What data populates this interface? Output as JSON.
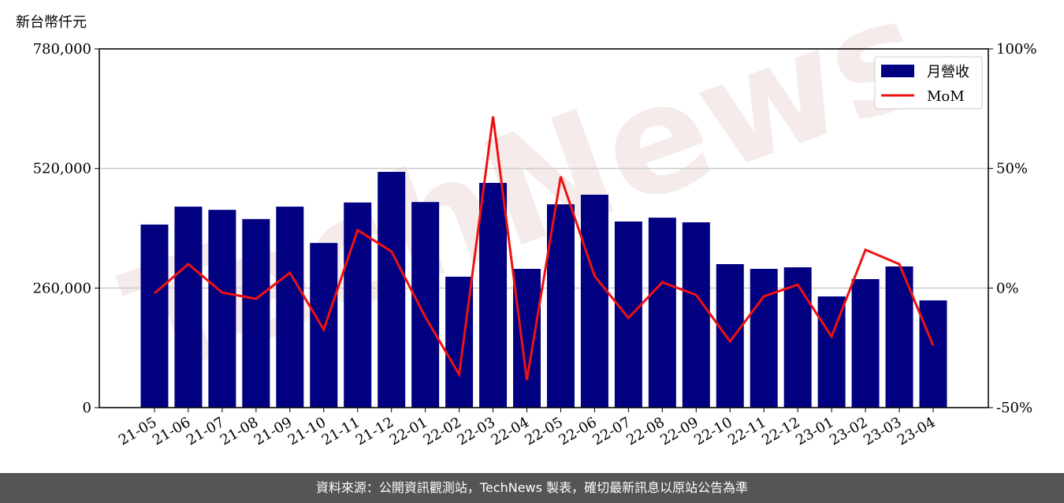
{
  "chart_data": {
    "type": "bar_line",
    "unit_label": "新台幣仟元",
    "watermark": "TechNews",
    "categories": [
      "21-05",
      "21-06",
      "21-07",
      "21-08",
      "21-09",
      "21-10",
      "21-11",
      "21-12",
      "22-01",
      "22-02",
      "22-03",
      "22-04",
      "22-05",
      "22-06",
      "22-07",
      "22-08",
      "22-09",
      "22-10",
      "22-11",
      "22-12",
      "23-01",
      "23-02",
      "23-03",
      "23-04"
    ],
    "series": [
      {
        "name": "月營收",
        "color": "#000080",
        "values": [
          398000,
          437000,
          430000,
          410000,
          437000,
          358000,
          446000,
          512600,
          447000,
          284600,
          488600,
          301700,
          442000,
          462900,
          404600,
          413000,
          402900,
          312000,
          301700,
          305000,
          241700,
          279400,
          306900,
          233100
        ]
      },
      {
        "name": "MoM",
        "color": "#ee1111",
        "axis": "y2",
        "values": [
          -2.2,
          10,
          -1.9,
          -4.5,
          6.4,
          -17.4,
          24.2,
          15.3,
          -12.1,
          -36.2,
          71.7,
          -38.5,
          46.6,
          5,
          -12.5,
          2.4,
          -2.9,
          -22.3,
          -3.5,
          1.4,
          -20.3,
          16,
          10,
          -24
        ]
      }
    ],
    "ylim": [
      0,
      780000
    ],
    "yticks": [
      0,
      {
        "value": 260000,
        "label": "260,000"
      },
      {
        "value": 520000,
        "label": "520,000"
      },
      {
        "value": 780000,
        "label": "780,000"
      }
    ],
    "y2lim": [
      -50,
      100
    ],
    "y2ticks": [
      {
        "value": -50,
        "label": "-50%"
      },
      {
        "value": 0,
        "label": "0%"
      },
      {
        "value": 50,
        "label": "50%"
      },
      {
        "value": 100,
        "label": "100%"
      }
    ],
    "grid": true,
    "legend": "upper right",
    "footer": "資料來源：公開資訊觀測站，TechNews 製表，確切最新訊息以原站公告為準"
  }
}
